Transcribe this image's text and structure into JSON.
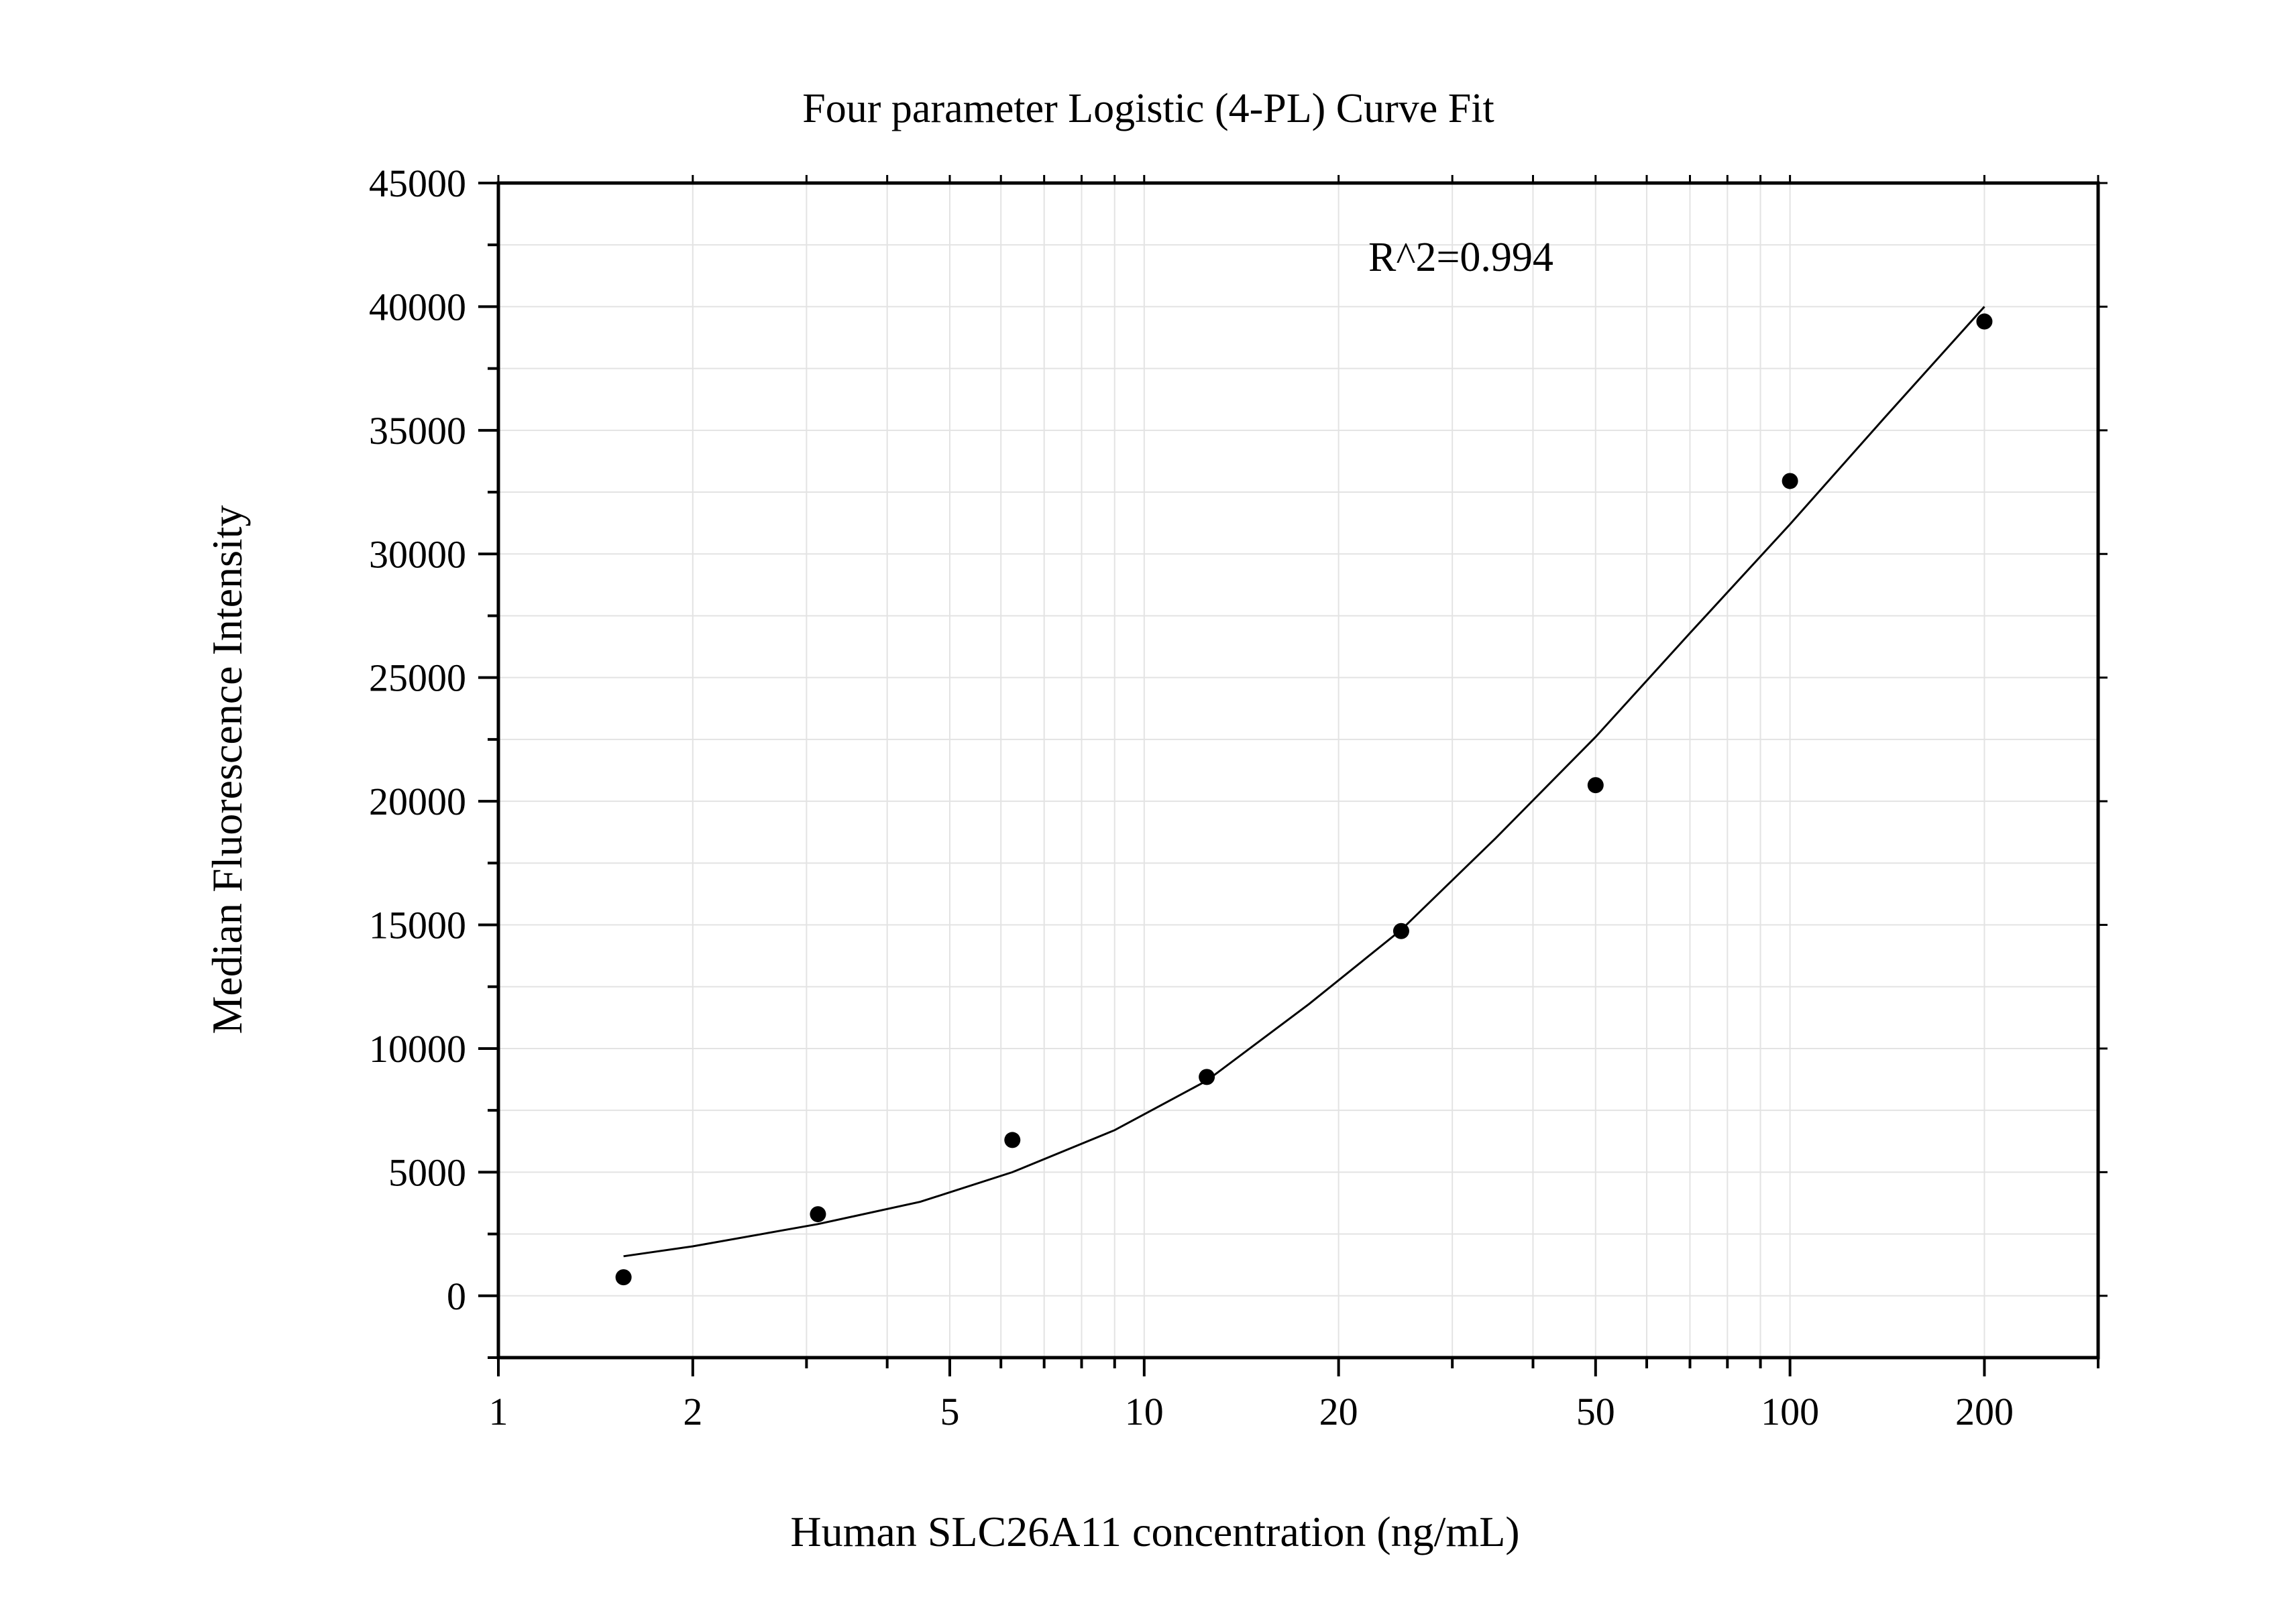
{
  "chart_data": {
    "type": "scatter",
    "title": "Four parameter Logistic (4-PL) Curve Fit",
    "xlabel": "Human SLC26A11 concentration (ng/mL)",
    "ylabel": "Median Fluorescence Intensity",
    "x_scale": "log",
    "xlim": [
      1,
      300
    ],
    "ylim": [
      -2500,
      45000
    ],
    "x_ticks": [
      1,
      2,
      5,
      10,
      20,
      50,
      100,
      200
    ],
    "x_tick_labels": [
      "1",
      "2",
      "5",
      "10",
      "20",
      "50",
      "100",
      "200"
    ],
    "y_ticks": [
      0,
      5000,
      10000,
      15000,
      20000,
      25000,
      30000,
      35000,
      40000,
      45000
    ],
    "y_tick_labels": [
      "0",
      "5000",
      "10000",
      "15000",
      "20000",
      "25000",
      "30000",
      "35000",
      "40000",
      "45000"
    ],
    "grid": true,
    "annotation": "R^2=0.994",
    "series": [
      {
        "type": "scatter",
        "x": [
          1.5625,
          3.125,
          6.25,
          12.5,
          25,
          50,
          100,
          200
        ],
        "y": [
          750,
          3300,
          6300,
          8850,
          14750,
          20650,
          32950,
          39400
        ]
      },
      {
        "type": "line",
        "x": [
          1.5625,
          2,
          3.125,
          4.5,
          6.25,
          9,
          12.5,
          18,
          25,
          35,
          50,
          70,
          100,
          140,
          200
        ],
        "y": [
          1600,
          2000,
          2900,
          3800,
          5000,
          6700,
          8700,
          11800,
          14800,
          18500,
          22600,
          26800,
          31200,
          35500,
          40000
        ]
      }
    ],
    "colors": {
      "marker": "#000000",
      "line": "#000000",
      "grid": "#e3e3e3",
      "axis": "#000000"
    }
  }
}
